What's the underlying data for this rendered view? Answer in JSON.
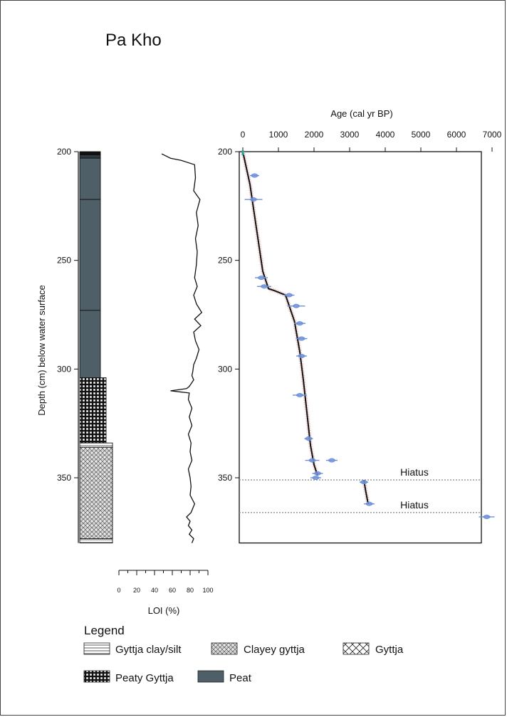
{
  "figure": {
    "title": "Pa Kho",
    "depth_axis_label": "Depth (cm) below water surface",
    "age_axis_label": "Age (cal yr BP)",
    "loi_axis_label": "LOI (%)"
  },
  "legend": {
    "title": "Legend",
    "items": [
      {
        "label": "Gyttja clay/silt",
        "pattern": "horizontal-lines"
      },
      {
        "label": "Clayey gyttja",
        "pattern": "dense-crosshatch"
      },
      {
        "label": "Gyttja",
        "pattern": "crosshatch"
      },
      {
        "label": "Peaty Gyttja",
        "pattern": "grid-dots"
      },
      {
        "label": "Peat",
        "pattern": "solid"
      }
    ]
  },
  "colors": {
    "peat": "#4f5f68",
    "date_marker": "#6b8fd8",
    "model_line": "#111111",
    "hiatus_line": "#8a8f99"
  },
  "chart_data": {
    "type": "line",
    "depth_ticks": [
      200,
      250,
      300,
      350
    ],
    "depth_range": [
      200,
      380
    ],
    "lithology": [
      {
        "from": 200,
        "to": 201.5,
        "type": "black-top"
      },
      {
        "from": 201.5,
        "to": 203,
        "type": "peat-dark"
      },
      {
        "from": 203,
        "to": 222,
        "type": "peat"
      },
      {
        "from": 222,
        "to": 273,
        "type": "peat"
      },
      {
        "from": 273,
        "to": 304,
        "type": "peat"
      },
      {
        "from": 304,
        "to": 334,
        "type": "peaty-gyttja"
      },
      {
        "from": 334,
        "to": 336,
        "type": "gyttja-clay-silt"
      },
      {
        "from": 336,
        "to": 378,
        "type": "clayey-gyttja"
      },
      {
        "from": 378,
        "to": 380,
        "type": "gyttja-clay-silt"
      }
    ],
    "loi": {
      "x_ticks": [
        0,
        20,
        40,
        60,
        80,
        100
      ],
      "x_range": [
        0,
        100
      ],
      "points": [
        [
          48,
          201
        ],
        [
          58,
          203
        ],
        [
          70,
          204
        ],
        [
          85,
          206
        ],
        [
          86,
          212
        ],
        [
          84,
          218
        ],
        [
          91,
          222
        ],
        [
          87,
          228
        ],
        [
          89,
          234
        ],
        [
          86,
          240
        ],
        [
          88,
          246
        ],
        [
          87,
          252
        ],
        [
          85,
          258
        ],
        [
          88,
          262
        ],
        [
          84,
          266
        ],
        [
          87,
          270
        ],
        [
          93,
          274
        ],
        [
          85,
          277
        ],
        [
          92,
          280
        ],
        [
          84,
          283
        ],
        [
          86,
          287
        ],
        [
          90,
          291
        ],
        [
          87,
          295
        ],
        [
          84,
          298
        ],
        [
          83,
          301
        ],
        [
          82,
          303
        ],
        [
          84,
          305
        ],
        [
          79,
          308
        ],
        [
          76,
          309
        ],
        [
          58,
          310
        ],
        [
          79,
          311
        ],
        [
          78,
          314
        ],
        [
          82,
          318
        ],
        [
          79,
          322
        ],
        [
          82,
          326
        ],
        [
          78,
          330
        ],
        [
          81,
          334
        ],
        [
          80,
          338
        ],
        [
          82,
          342
        ],
        [
          78,
          346
        ],
        [
          80,
          350
        ],
        [
          81,
          354
        ],
        [
          80,
          358
        ],
        [
          85,
          362
        ],
        [
          81,
          366
        ],
        [
          76,
          368
        ],
        [
          80,
          370
        ],
        [
          78,
          372
        ],
        [
          82,
          374
        ],
        [
          79,
          376
        ],
        [
          84,
          378
        ],
        [
          82,
          380
        ]
      ]
    },
    "age_model": {
      "x_ticks": [
        0,
        1000,
        2000,
        3000,
        4000,
        5000,
        6000,
        7000
      ],
      "x_range": [
        0,
        7500
      ],
      "segment_1": [
        [
          0,
          200
        ],
        [
          200,
          215
        ],
        [
          380,
          235
        ],
        [
          560,
          255
        ],
        [
          720,
          263
        ],
        [
          900,
          264
        ],
        [
          1200,
          266
        ],
        [
          1450,
          278
        ],
        [
          1600,
          292
        ],
        [
          1700,
          305
        ],
        [
          1800,
          320
        ],
        [
          1900,
          335
        ],
        [
          2000,
          344
        ],
        [
          2100,
          349
        ]
      ],
      "segment_2": [
        [
          3400,
          351
        ],
        [
          3450,
          356
        ],
        [
          3520,
          362
        ]
      ],
      "dates": [
        {
          "age": 330,
          "depth": 211,
          "err": 130
        },
        {
          "age": 300,
          "depth": 222,
          "err": 250
        },
        {
          "age": 520,
          "depth": 258,
          "err": 180
        },
        {
          "age": 600,
          "depth": 262,
          "err": 200
        },
        {
          "age": 1300,
          "depth": 266,
          "err": 150
        },
        {
          "age": 1500,
          "depth": 271,
          "err": 250
        },
        {
          "age": 1600,
          "depth": 279,
          "err": 160
        },
        {
          "age": 1650,
          "depth": 286,
          "err": 160
        },
        {
          "age": 1650,
          "depth": 294,
          "err": 150
        },
        {
          "age": 1600,
          "depth": 312,
          "err": 200
        },
        {
          "age": 1850,
          "depth": 332,
          "err": 120
        },
        {
          "age": 1950,
          "depth": 342,
          "err": 200
        },
        {
          "age": 2100,
          "depth": 348,
          "err": 150
        },
        {
          "age": 2050,
          "depth": 350,
          "err": 150
        },
        {
          "age": 2500,
          "depth": 342,
          "err": 160
        },
        {
          "age": 3400,
          "depth": 352,
          "err": 120
        },
        {
          "age": 3550,
          "depth": 362,
          "err": 150
        },
        {
          "age": 6850,
          "depth": 368,
          "err": 220
        }
      ],
      "hiatuses": [
        {
          "depth": 351,
          "label": "Hiatus"
        },
        {
          "depth": 366,
          "label": "Hiatus"
        }
      ]
    }
  }
}
